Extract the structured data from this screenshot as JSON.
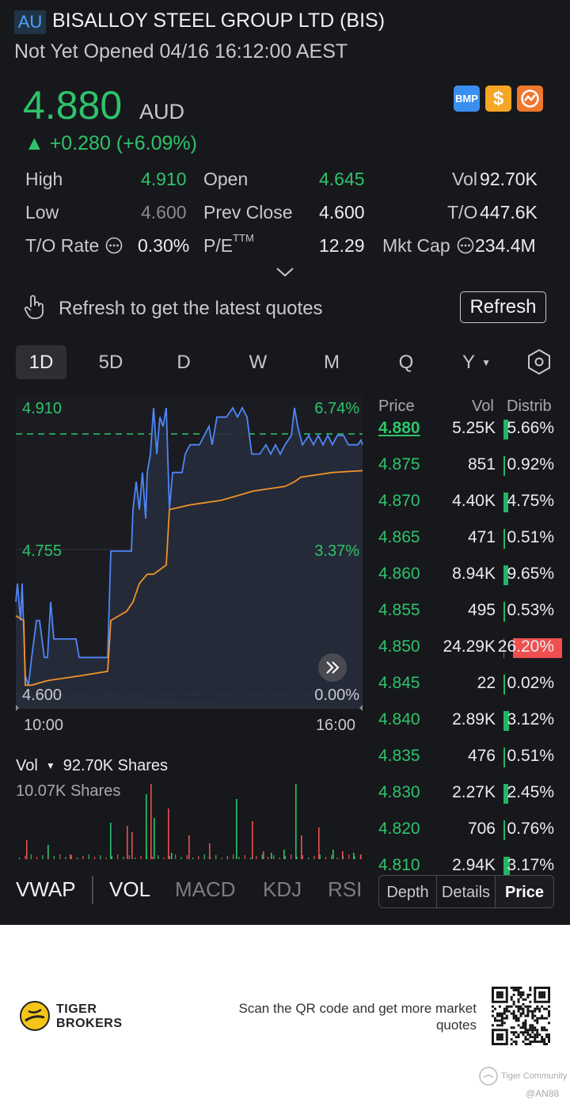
{
  "header": {
    "market_badge": "AU",
    "title": "BISALLOY STEEL GROUP LTD (BIS)",
    "status": "Not Yet Opened 04/16 16:12:00 AEST"
  },
  "quote": {
    "price": "4.880",
    "currency": "AUD",
    "change": "▲ +0.280 (+6.09%)",
    "icons": {
      "bmp_label": "BMP",
      "dollar_label": "$",
      "icon3": "chart-badge-icon"
    }
  },
  "stats": {
    "high_label": "High",
    "high_value": "4.910",
    "open_label": "Open",
    "open_value": "4.645",
    "vol_label": "Vol",
    "vol_value": "92.70K",
    "low_label": "Low",
    "low_value": "4.600",
    "prev_close_label": "Prev Close",
    "prev_close_value": "4.600",
    "to_label": "T/O",
    "to_value": "447.6K",
    "to_rate_label": "T/O Rate",
    "to_rate_value": "0.30%",
    "pe_label": "P/E",
    "pe_sup": "TTM",
    "pe_value": "12.29",
    "mkt_cap_label": "Mkt Cap",
    "mkt_cap_value": "234.4M"
  },
  "refresh": {
    "message": "Refresh to get the latest quotes",
    "button": "Refresh"
  },
  "chart_tabs": [
    "1D",
    "5D",
    "D",
    "W",
    "M",
    "Q",
    "Y"
  ],
  "chart": {
    "y_high": "4.910",
    "y_mid": "4.755",
    "y_low": "4.600",
    "pct_high": "6.74%",
    "pct_mid": "3.37%",
    "pct_low": "0.00%",
    "x_start": "10:00",
    "x_end": "16:00",
    "price_color": "#4f86f7",
    "vwap_color": "#f0922a"
  },
  "volume": {
    "label": "Vol",
    "total": "92.70K Shares",
    "max": "10.07K Shares"
  },
  "orderbook": {
    "headers": {
      "price": "Price",
      "vol": "Vol",
      "distrib": "Distrib"
    },
    "rows": [
      {
        "price": "4.880",
        "vol": "5.25K",
        "dist": "5.66%",
        "pct": 5.66
      },
      {
        "price": "4.875",
        "vol": "851",
        "dist": "0.92%",
        "pct": 0.92
      },
      {
        "price": "4.870",
        "vol": "4.40K",
        "dist": "4.75%",
        "pct": 4.75
      },
      {
        "price": "4.865",
        "vol": "471",
        "dist": "0.51%",
        "pct": 0.51
      },
      {
        "price": "4.860",
        "vol": "8.94K",
        "dist": "9.65%",
        "pct": 9.65
      },
      {
        "price": "4.855",
        "vol": "495",
        "dist": "0.53%",
        "pct": 0.53
      },
      {
        "price": "4.850",
        "vol": "24.29K",
        "dist": "26.20%",
        "pct": 26.2
      },
      {
        "price": "4.845",
        "vol": "22",
        "dist": "0.02%",
        "pct": 0.02
      },
      {
        "price": "4.840",
        "vol": "2.89K",
        "dist": "3.12%",
        "pct": 3.12
      },
      {
        "price": "4.835",
        "vol": "476",
        "dist": "0.51%",
        "pct": 0.51
      },
      {
        "price": "4.830",
        "vol": "2.27K",
        "dist": "2.45%",
        "pct": 2.45
      },
      {
        "price": "4.820",
        "vol": "706",
        "dist": "0.76%",
        "pct": 0.76
      },
      {
        "price": "4.810",
        "vol": "2.94K",
        "dist": "3.17%",
        "pct": 3.17
      }
    ]
  },
  "indicators": [
    "VWAP",
    "VOL",
    "MACD",
    "KDJ",
    "RSI"
  ],
  "segments": [
    "Depth",
    "Details",
    "Price"
  ],
  "footer": {
    "brand_line1": "TIGER",
    "brand_line2": "BROKERS",
    "qr_text": "Scan the QR code and get more market quotes",
    "community": "Tiger Community",
    "handle": "@AN88"
  }
}
